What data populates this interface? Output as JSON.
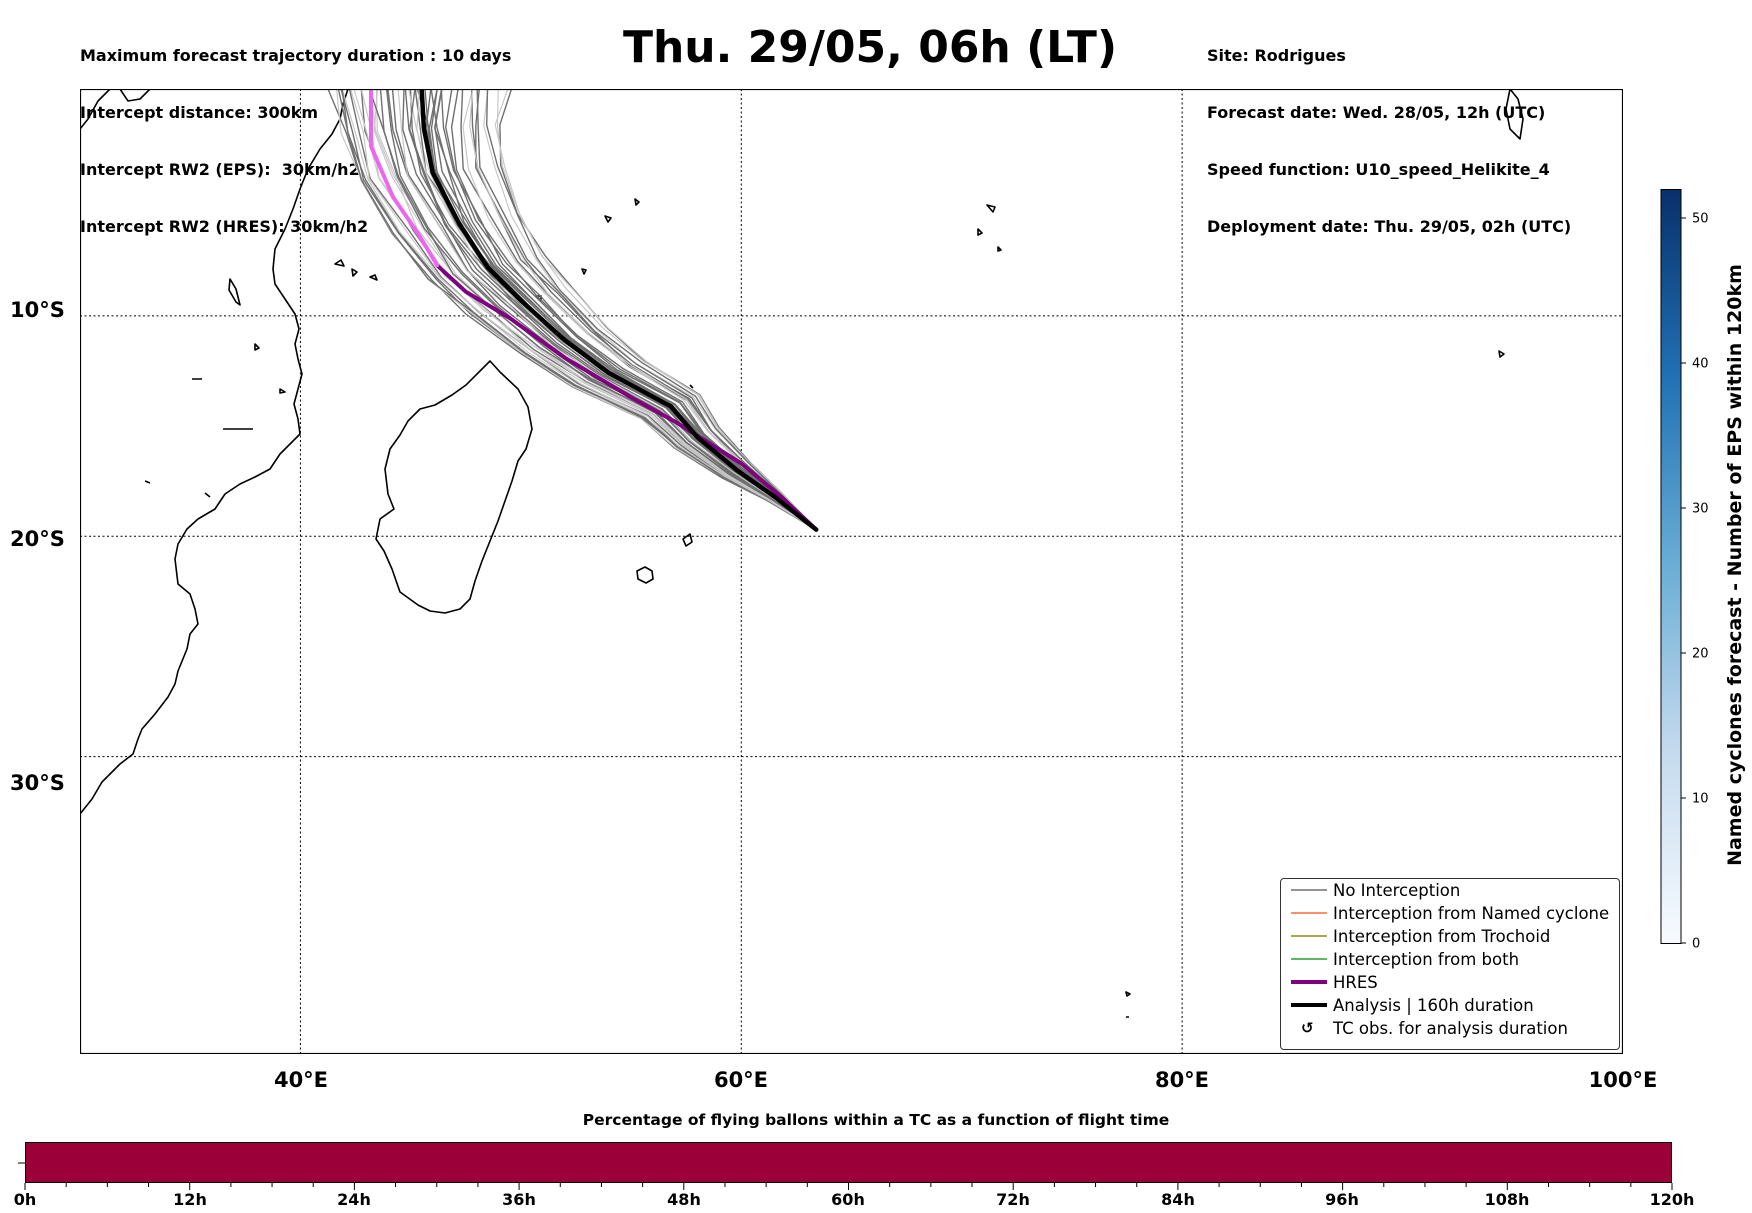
{
  "header_left": [
    "Maximum forecast trajectory duration : 10 days",
    "Intercept distance: 300km",
    "Intercept RW2 (EPS):  30km/h2",
    "Intercept RW2 (HRES): 30km/h2"
  ],
  "title": "Thu. 29/05, 06h (LT)",
  "header_right": [
    "Site: Rodrigues",
    "Forecast date: Wed. 28/05, 12h (UTC)",
    "Speed function: U10_speed_Helikite_4",
    "Deployment date: Thu. 29/05, 02h (UTC)"
  ],
  "map": {
    "lon_range": [
      30,
      100
    ],
    "lat_range": [
      -43.5,
      0.3
    ],
    "lat_gridlines": [
      -10,
      -20,
      -30
    ],
    "lon_gridlines": [
      40,
      60,
      80
    ],
    "lat_labels": [
      "10°S",
      "20°S",
      "30°S"
    ],
    "lon_labels": [
      "40°E",
      "60°E",
      "80°E",
      "100°E"
    ],
    "deployment_site_lonlat": [
      63.4,
      -19.7
    ],
    "hres_track_lonlat": [
      [
        63.4,
        -19.7
      ],
      [
        61.8,
        -18.2
      ],
      [
        60.0,
        -16.7
      ],
      [
        57.0,
        -14.8
      ],
      [
        55.0,
        -13.7
      ],
      [
        52.0,
        -11.9
      ],
      [
        49.5,
        -10.1
      ],
      [
        47.5,
        -8.9
      ],
      [
        46.2,
        -7.7
      ],
      [
        45.3,
        -6.2
      ],
      [
        44.2,
        -4.6
      ],
      [
        43.2,
        -2.3
      ],
      [
        43.2,
        0.3
      ]
    ],
    "analysis_track_lonlat": [
      [
        63.4,
        -19.7
      ],
      [
        61.5,
        -18.2
      ],
      [
        59.8,
        -17.0
      ],
      [
        58.0,
        -15.5
      ],
      [
        56.8,
        -14.1
      ],
      [
        54.0,
        -12.6
      ],
      [
        52.0,
        -11.1
      ],
      [
        50.0,
        -9.3
      ],
      [
        48.5,
        -7.8
      ],
      [
        47.2,
        -5.8
      ],
      [
        46.0,
        -3.5
      ],
      [
        45.6,
        -1.5
      ],
      [
        45.5,
        0.3
      ]
    ],
    "colors": {
      "hres": "#800080",
      "hres_late": "#ee66ee",
      "analysis": "#000000",
      "no_interception": "#707070",
      "ensemble_faint": "#c8c8c8"
    }
  },
  "legend": [
    {
      "label": "No Interception",
      "color": "#707070",
      "kind": "thin"
    },
    {
      "label": "Interception from Named cyclone",
      "color": "#ff6a33",
      "kind": "thin"
    },
    {
      "label": "Interception from Trochoid",
      "color": "#8b8b1a",
      "kind": "thin"
    },
    {
      "label": "Interception from both",
      "color": "#2ca02c",
      "kind": "thin"
    },
    {
      "label": "HRES",
      "color": "#800080",
      "kind": "thick"
    },
    {
      "label": "Analysis | 160h duration",
      "color": "#000000",
      "kind": "thick"
    },
    {
      "label": "TC obs. for analysis duration",
      "color": "#000000",
      "kind": "symbol",
      "symbol": "↺"
    }
  ],
  "colorbar": {
    "title": "Named cyclones forecast - Number of EPS within 120km",
    "range": [
      0,
      52
    ],
    "ticks": [
      "0",
      "10",
      "20",
      "30",
      "40",
      "50"
    ],
    "tick_values": [
      0,
      10,
      20,
      30,
      40,
      50
    ],
    "colormap": [
      "#f7fbff",
      "#08306b"
    ]
  },
  "percentage_bar": {
    "title": "Percentage of flying ballons within a TC as a function of flight time",
    "color": "#9b0039",
    "hour_labels": [
      "0h",
      "12h",
      "24h",
      "36h",
      "48h",
      "60h",
      "72h",
      "84h",
      "96h",
      "108h",
      "120h"
    ]
  }
}
